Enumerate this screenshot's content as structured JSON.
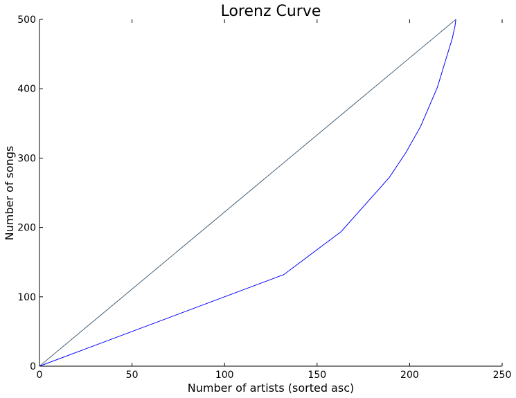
{
  "chart_data": {
    "type": "line",
    "title": "Lorenz Curve",
    "xlabel": "Number of artists (sorted asc)",
    "ylabel": "Number of songs",
    "xlim": [
      0,
      250
    ],
    "ylim": [
      0,
      500
    ],
    "xticks": [
      "0",
      "50",
      "100",
      "150",
      "200",
      "250"
    ],
    "yticks": [
      "0",
      "100",
      "200",
      "300",
      "400",
      "500"
    ],
    "grid": false,
    "series": [
      {
        "color": "#4a6478",
        "x": [
          0,
          225
        ],
        "y": [
          0,
          500
        ]
      },
      {
        "color": "#0000ff",
        "x": [
          0,
          132,
          163,
          189,
          198,
          206,
          215,
          220,
          223,
          224.5,
          225
        ],
        "y": [
          0,
          132,
          194,
          272,
          308,
          346,
          402,
          446,
          472,
          490,
          500
        ]
      }
    ]
  }
}
